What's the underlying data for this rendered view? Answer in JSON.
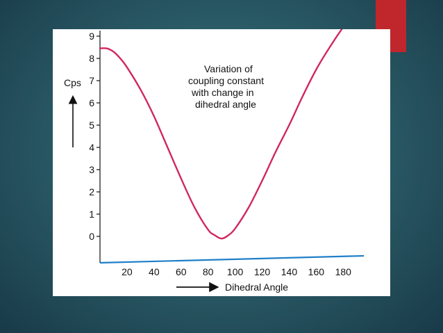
{
  "slide": {
    "accent_color": "#c0272d",
    "background_color": "#2b5d68"
  },
  "chart_data": {
    "type": "line",
    "title": "",
    "annotation": [
      "Variation of",
      "coupling constant",
      "with change in",
      "dihedral angle"
    ],
    "xlabel": "Dihedral Angle",
    "ylabel": "Cps",
    "xlim": [
      0,
      185
    ],
    "ylim": [
      -0.2,
      9
    ],
    "x_ticks": [
      20,
      40,
      60,
      80,
      100,
      120,
      140,
      160,
      180
    ],
    "y_ticks": [
      0,
      1,
      2,
      3,
      4,
      5,
      6,
      7,
      8,
      9
    ],
    "grid": false,
    "line_color": "#d0285f",
    "series": [
      {
        "x": [
          0,
          5,
          10,
          15,
          20,
          30,
          40,
          50,
          60,
          70,
          80,
          85,
          90,
          95,
          100,
          110,
          120,
          130,
          140,
          150,
          160,
          170,
          180,
          185
        ],
        "values": [
          8.45,
          8.45,
          8.3,
          8.0,
          7.6,
          6.6,
          5.4,
          4.0,
          2.6,
          1.3,
          0.3,
          0.05,
          -0.1,
          0.05,
          0.35,
          1.3,
          2.5,
          3.8,
          5.0,
          6.3,
          7.5,
          8.5,
          9.4,
          9.7
        ]
      }
    ]
  }
}
